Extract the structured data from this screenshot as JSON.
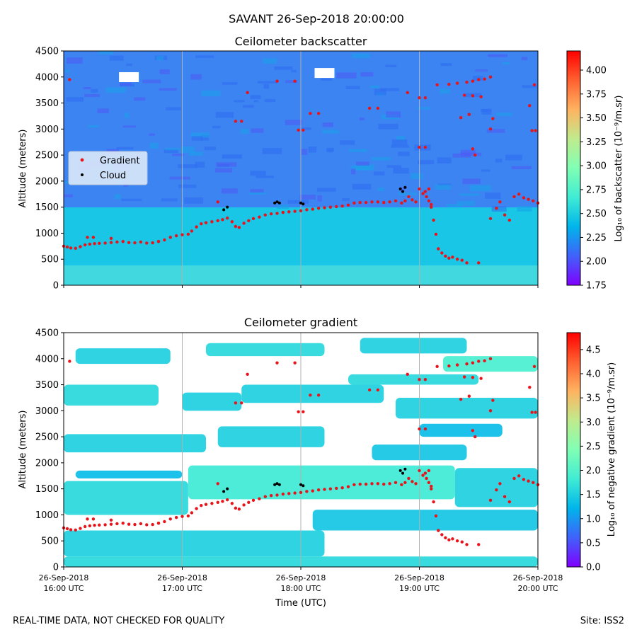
{
  "figure": {
    "suptitle": "SAVANT 26-Sep-2018 20:00:00",
    "footer_left": "REAL-TIME DATA, NOT CHECKED FOR QUALITY",
    "footer_right": "Site: ISS2"
  },
  "chart_data": [
    {
      "type": "heatmap",
      "title": "Ceilometer backscatter",
      "xlabel": "",
      "ylabel": "Altitude (meters)",
      "xlim": [
        16.0,
        20.0
      ],
      "ylim": [
        0,
        4500
      ],
      "yticks": [
        0,
        500,
        1000,
        1500,
        2000,
        2500,
        3000,
        3500,
        4000,
        4500
      ],
      "colorbar": {
        "label": "Log₁₀ of backscatter (10⁻⁹/m.sr)",
        "range": [
          1.75,
          4.2
        ],
        "ticks": [
          "1.75",
          "2.00",
          "2.25",
          "2.50",
          "2.75",
          "3.00",
          "3.25",
          "3.50",
          "3.75",
          "4.00"
        ],
        "colormap": "rainbow"
      },
      "legend": {
        "placement": "center-left",
        "entries": [
          "Gradient",
          "Cloud"
        ]
      },
      "description": "low layer ~2.6 below ~1500 m, ~2.2 above"
    },
    {
      "type": "heatmap",
      "title": "Ceilometer gradient",
      "xlabel": "Time (UTC)",
      "ylabel": "Altitude (meters)",
      "xlim": [
        16.0,
        20.0
      ],
      "ylim": [
        0,
        4500
      ],
      "yticks": [
        0,
        500,
        1000,
        1500,
        2000,
        2500,
        3000,
        3500,
        4000,
        4500
      ],
      "xticks": [
        {
          "value": 16.0,
          "line1": "26-Sep-2018",
          "line2": "16:00 UTC"
        },
        {
          "value": 17.0,
          "line1": "26-Sep-2018",
          "line2": "17:00 UTC"
        },
        {
          "value": 18.0,
          "line1": "26-Sep-2018",
          "line2": "18:00 UTC"
        },
        {
          "value": 19.0,
          "line1": "26-Sep-2018",
          "line2": "19:00 UTC"
        },
        {
          "value": 20.0,
          "line1": "26-Sep-2018",
          "line2": "20:00 UTC"
        }
      ],
      "colorbar": {
        "label": "Log₁₀ of negative gradient (10⁻⁹/m.sr)",
        "range": [
          0.0,
          4.85
        ],
        "ticks": [
          "0.0",
          "0.5",
          "1.0",
          "1.5",
          "2.0",
          "2.5",
          "3.0",
          "3.5",
          "4.0",
          "4.5"
        ],
        "colormap": "rainbow"
      },
      "patches": [
        {
          "x": [
            16.0,
            20.0
          ],
          "y": [
            0,
            200
          ],
          "v": 1.6
        },
        {
          "x": [
            16.0,
            18.2
          ],
          "y": [
            200,
            700
          ],
          "v": 1.5
        },
        {
          "x": [
            16.0,
            17.05
          ],
          "y": [
            1000,
            1650
          ],
          "v": 1.6
        },
        {
          "x": [
            17.05,
            19.3
          ],
          "y": [
            1300,
            1950
          ],
          "v": 1.8
        },
        {
          "x": [
            19.3,
            20.0
          ],
          "y": [
            1150,
            1900
          ],
          "v": 1.5
        },
        {
          "x": [
            18.1,
            20.0
          ],
          "y": [
            700,
            1100
          ],
          "v": 1.4
        },
        {
          "x": [
            16.0,
            17.2
          ],
          "y": [
            2200,
            2550
          ],
          "v": 1.5
        },
        {
          "x": [
            17.3,
            18.2
          ],
          "y": [
            2300,
            2700
          ],
          "v": 1.5
        },
        {
          "x": [
            16.0,
            16.8
          ],
          "y": [
            3100,
            3500
          ],
          "v": 1.6
        },
        {
          "x": [
            17.0,
            17.5
          ],
          "y": [
            3000,
            3350
          ],
          "v": 1.5
        },
        {
          "x": [
            17.5,
            18.7
          ],
          "y": [
            3150,
            3500
          ],
          "v": 1.5
        },
        {
          "x": [
            18.4,
            19.5
          ],
          "y": [
            3500,
            3700
          ],
          "v": 1.6
        },
        {
          "x": [
            18.8,
            20.0
          ],
          "y": [
            2850,
            3250
          ],
          "v": 1.5
        },
        {
          "x": [
            19.2,
            20.0
          ],
          "y": [
            3750,
            4050
          ],
          "v": 1.9
        },
        {
          "x": [
            17.2,
            18.2
          ],
          "y": [
            4050,
            4300
          ],
          "v": 1.6
        },
        {
          "x": [
            18.5,
            19.4
          ],
          "y": [
            4100,
            4400
          ],
          "v": 1.5
        },
        {
          "x": [
            16.1,
            16.9
          ],
          "y": [
            3900,
            4200
          ],
          "v": 1.5
        },
        {
          "x": [
            18.6,
            19.4
          ],
          "y": [
            2050,
            2350
          ],
          "v": 1.4
        },
        {
          "x": [
            19.0,
            19.7
          ],
          "y": [
            2500,
            2750
          ],
          "v": 1.3
        },
        {
          "x": [
            16.1,
            17.0
          ],
          "y": [
            1700,
            1850
          ],
          "v": 1.3
        }
      ]
    }
  ],
  "gradient_points": [
    [
      16.0,
      750
    ],
    [
      16.03,
      735
    ],
    [
      16.06,
      715
    ],
    [
      16.1,
      710
    ],
    [
      16.14,
      740
    ],
    [
      16.18,
      775
    ],
    [
      16.22,
      790
    ],
    [
      16.26,
      800
    ],
    [
      16.3,
      805
    ],
    [
      16.35,
      810
    ],
    [
      16.4,
      820
    ],
    [
      16.45,
      830
    ],
    [
      16.5,
      840
    ],
    [
      16.55,
      820
    ],
    [
      16.6,
      815
    ],
    [
      16.65,
      830
    ],
    [
      16.7,
      810
    ],
    [
      16.75,
      815
    ],
    [
      16.8,
      840
    ],
    [
      16.85,
      870
    ],
    [
      16.9,
      920
    ],
    [
      16.95,
      950
    ],
    [
      17.0,
      970
    ],
    [
      17.05,
      980
    ],
    [
      17.08,
      1040
    ],
    [
      17.12,
      1120
    ],
    [
      17.16,
      1180
    ],
    [
      17.2,
      1200
    ],
    [
      17.25,
      1220
    ],
    [
      17.3,
      1240
    ],
    [
      17.34,
      1260
    ],
    [
      17.38,
      1290
    ],
    [
      17.42,
      1220
    ],
    [
      17.45,
      1130
    ],
    [
      17.48,
      1110
    ],
    [
      17.52,
      1190
    ],
    [
      17.56,
      1240
    ],
    [
      17.6,
      1280
    ],
    [
      17.65,
      1310
    ],
    [
      17.7,
      1350
    ],
    [
      17.75,
      1370
    ],
    [
      17.8,
      1380
    ],
    [
      17.85,
      1400
    ],
    [
      17.9,
      1410
    ],
    [
      17.95,
      1420
    ],
    [
      18.0,
      1430
    ],
    [
      18.05,
      1450
    ],
    [
      18.1,
      1460
    ],
    [
      18.15,
      1480
    ],
    [
      18.2,
      1490
    ],
    [
      18.25,
      1500
    ],
    [
      18.3,
      1510
    ],
    [
      18.35,
      1520
    ],
    [
      18.4,
      1540
    ],
    [
      18.45,
      1580
    ],
    [
      18.5,
      1590
    ],
    [
      18.55,
      1590
    ],
    [
      18.6,
      1600
    ],
    [
      18.65,
      1600
    ],
    [
      18.7,
      1590
    ],
    [
      18.75,
      1600
    ],
    [
      18.8,
      1620
    ],
    [
      18.85,
      1580
    ],
    [
      18.88,
      1620
    ],
    [
      18.91,
      1700
    ],
    [
      18.94,
      1640
    ],
    [
      18.97,
      1600
    ],
    [
      19.0,
      1850
    ],
    [
      19.03,
      1760
    ],
    [
      19.06,
      1700
    ],
    [
      19.08,
      1620
    ],
    [
      19.1,
      1500
    ],
    [
      19.12,
      1250
    ],
    [
      19.14,
      980
    ],
    [
      19.16,
      700
    ],
    [
      19.19,
      620
    ],
    [
      19.22,
      560
    ],
    [
      19.25,
      520
    ],
    [
      19.28,
      540
    ],
    [
      19.32,
      500
    ],
    [
      19.36,
      480
    ],
    [
      19.4,
      430
    ],
    [
      19.5,
      430
    ],
    [
      19.6,
      1280
    ],
    [
      19.65,
      1480
    ],
    [
      19.68,
      1600
    ],
    [
      19.72,
      1350
    ],
    [
      19.76,
      1250
    ],
    [
      19.8,
      1700
    ],
    [
      19.84,
      1750
    ],
    [
      19.88,
      1680
    ],
    [
      19.92,
      1650
    ],
    [
      19.96,
      1620
    ],
    [
      20.0,
      1580
    ],
    [
      16.05,
      3950
    ],
    [
      16.2,
      920
    ],
    [
      16.25,
      920
    ],
    [
      16.4,
      900
    ],
    [
      16.8,
      840
    ],
    [
      17.3,
      1600
    ],
    [
      17.45,
      3150
    ],
    [
      17.5,
      3150
    ],
    [
      17.55,
      3700
    ],
    [
      17.8,
      3920
    ],
    [
      17.95,
      3920
    ],
    [
      17.98,
      2980
    ],
    [
      18.02,
      2980
    ],
    [
      18.08,
      3300
    ],
    [
      18.15,
      3300
    ],
    [
      18.58,
      3400
    ],
    [
      18.65,
      3400
    ],
    [
      18.9,
      3700
    ],
    [
      19.0,
      3600
    ],
    [
      19.05,
      3600
    ],
    [
      19.0,
      2650
    ],
    [
      19.05,
      2650
    ],
    [
      19.15,
      3850
    ],
    [
      19.25,
      3860
    ],
    [
      19.32,
      3880
    ],
    [
      19.4,
      3900
    ],
    [
      19.45,
      3920
    ],
    [
      19.5,
      3950
    ],
    [
      19.55,
      3960
    ],
    [
      19.6,
      4000
    ],
    [
      19.38,
      3650
    ],
    [
      19.45,
      3640
    ],
    [
      19.52,
      3620
    ],
    [
      19.42,
      3280
    ],
    [
      19.35,
      3220
    ],
    [
      19.45,
      2620
    ],
    [
      19.47,
      2500
    ],
    [
      19.6,
      3000
    ],
    [
      19.62,
      3200
    ],
    [
      19.95,
      2970
    ],
    [
      19.98,
      2970
    ],
    [
      19.97,
      3850
    ],
    [
      19.93,
      3450
    ],
    [
      19.05,
      1800
    ],
    [
      19.1,
      1550
    ],
    [
      19.08,
      1850
    ]
  ],
  "cloud_points": [
    [
      17.35,
      1450
    ],
    [
      17.38,
      1500
    ],
    [
      17.78,
      1580
    ],
    [
      17.8,
      1600
    ],
    [
      17.82,
      1580
    ],
    [
      18.0,
      1580
    ],
    [
      18.02,
      1560
    ],
    [
      18.84,
      1850
    ],
    [
      18.86,
      1800
    ],
    [
      18.88,
      1880
    ]
  ]
}
